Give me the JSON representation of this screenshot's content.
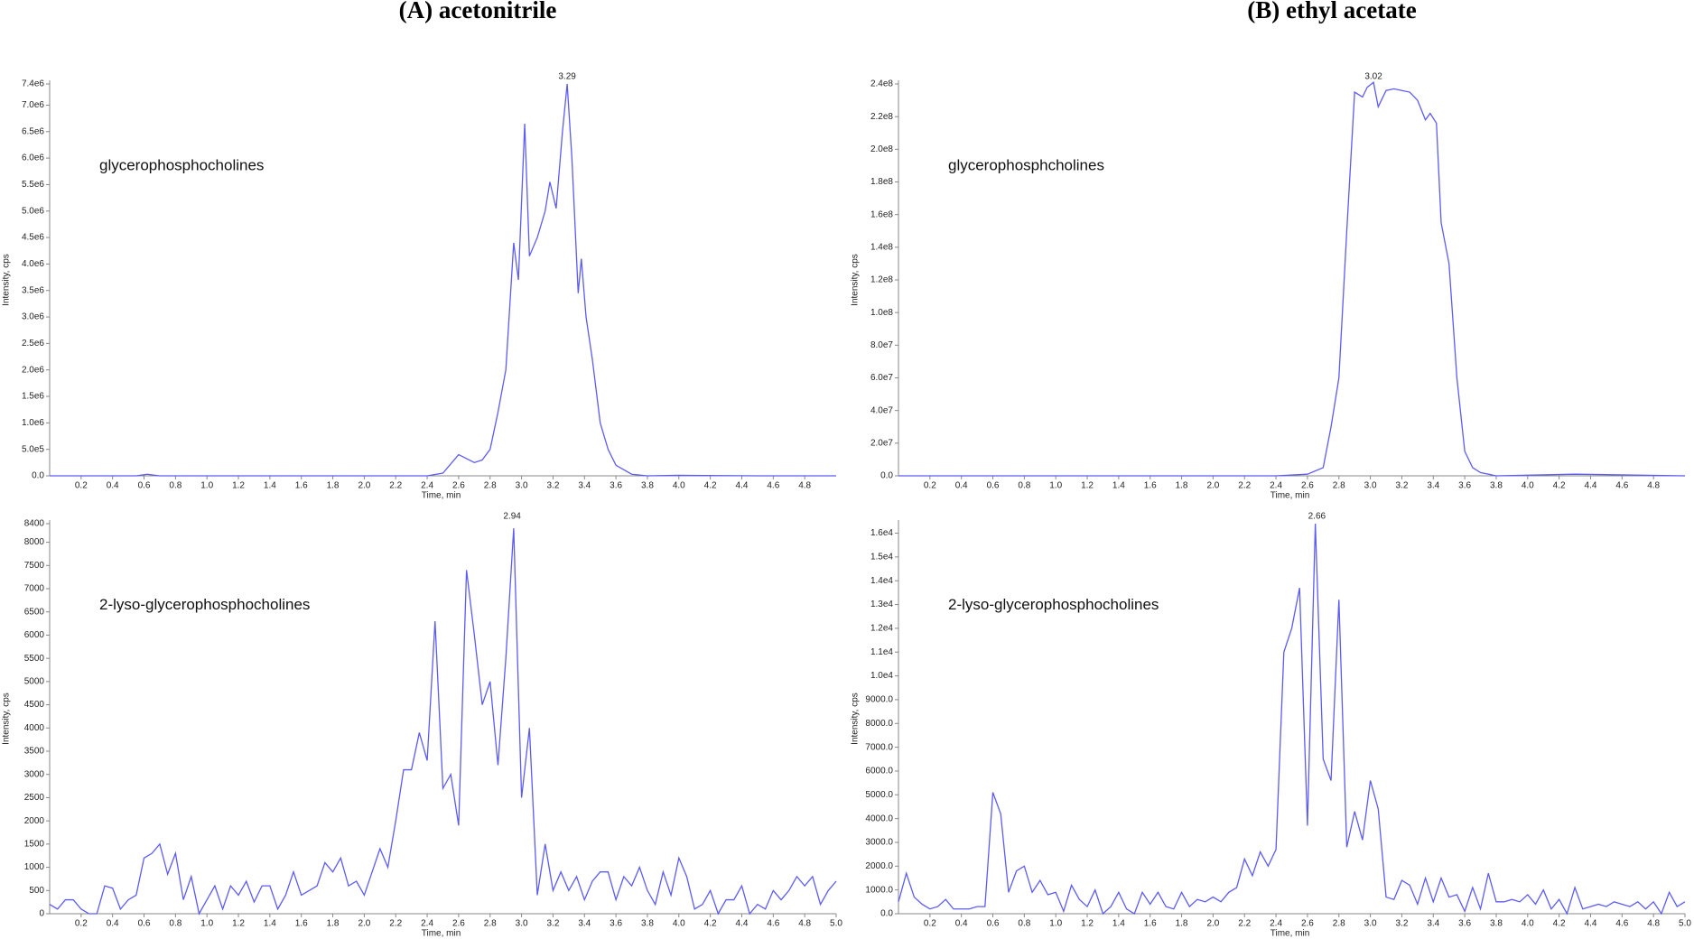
{
  "headings": [
    "(A)  acetonitrile",
    "(B) ethyl acetate"
  ],
  "chart_data": [
    {
      "type": "line",
      "annotation": "glycerophosphocholines",
      "peak_label": 3.29,
      "xlabel": "Time, min",
      "ylabel": "Intensity, cps",
      "xlim": [
        0,
        5
      ],
      "ylim": [
        0,
        7400000
      ],
      "xticks": [
        0.2,
        0.4,
        0.6,
        0.8,
        {
          "value": 1,
          "label": "1.0"
        },
        1.2,
        1.4,
        1.6,
        1.8,
        {
          "value": 2,
          "label": "2.0"
        },
        2.2,
        2.4,
        2.6,
        2.8,
        {
          "value": 3,
          "label": "3.0"
        },
        3.2,
        3.4,
        3.6,
        3.8,
        {
          "value": 4,
          "label": "4.0"
        },
        4.2,
        4.4,
        4.6,
        4.8
      ],
      "yticks": [
        {
          "value": 0,
          "label": "0.0"
        },
        {
          "value": 500000,
          "label": "5.0e5"
        },
        {
          "value": 1000000,
          "label": "1.0e6"
        },
        {
          "value": 1500000,
          "label": "1.5e6"
        },
        {
          "value": 2000000,
          "label": "2.0e6"
        },
        {
          "value": 2500000,
          "label": "2.5e6"
        },
        {
          "value": 3000000,
          "label": "3.0e6"
        },
        {
          "value": 3500000,
          "label": "3.5e6"
        },
        {
          "value": 4000000,
          "label": "4.0e6"
        },
        {
          "value": 4500000,
          "label": "4.5e6"
        },
        {
          "value": 5000000,
          "label": "5.0e6"
        },
        {
          "value": 5500000,
          "label": "5.5e6"
        },
        {
          "value": 6000000,
          "label": "6.0e6"
        },
        {
          "value": 6500000,
          "label": "6.5e6"
        },
        {
          "value": 7000000,
          "label": "7.0e6"
        },
        {
          "value": 7400000,
          "label": "7.4e6"
        }
      ],
      "color": "#5c5cf5",
      "x": [
        0,
        0.55,
        0.62,
        0.7,
        2.0,
        2.4,
        2.5,
        2.6,
        2.7,
        2.75,
        2.8,
        2.85,
        2.9,
        2.95,
        2.98,
        3.02,
        3.05,
        3.1,
        3.15,
        3.18,
        3.22,
        3.26,
        3.29,
        3.32,
        3.36,
        3.38,
        3.41,
        3.45,
        3.5,
        3.55,
        3.6,
        3.7,
        3.8,
        4.0,
        4.5,
        5.0
      ],
      "values": [
        0,
        0,
        30000,
        0,
        0,
        0,
        50000,
        400000,
        250000,
        300000,
        500000,
        1200000,
        2000000,
        4400000,
        3700000,
        6650000,
        4150000,
        4500000,
        5000000,
        5550000,
        5050000,
        6500000,
        7400000,
        6000000,
        3450000,
        4100000,
        3000000,
        2200000,
        1000000,
        500000,
        200000,
        30000,
        0,
        10000,
        0,
        0
      ]
    },
    {
      "type": "line",
      "annotation": "glycerophosphcholines",
      "peak_label": 3.02,
      "xlabel": "Time, min",
      "ylabel": "Intensity, cps",
      "xlim": [
        0,
        5
      ],
      "ylim": [
        0,
        240000000
      ],
      "xticks": [
        0.2,
        0.4,
        0.6,
        0.8,
        {
          "value": 1,
          "label": "1.0"
        },
        1.2,
        1.4,
        1.6,
        1.8,
        {
          "value": 2,
          "label": "2.0"
        },
        2.2,
        2.4,
        2.6,
        2.8,
        {
          "value": 3,
          "label": "3.0"
        },
        3.2,
        3.4,
        3.6,
        3.8,
        {
          "value": 4,
          "label": "4.0"
        },
        4.2,
        4.4,
        4.6,
        4.8
      ],
      "yticks": [
        {
          "value": 0,
          "label": "0.0"
        },
        {
          "value": 20000000,
          "label": "2.0e7"
        },
        {
          "value": 40000000,
          "label": "4.0e7"
        },
        {
          "value": 60000000,
          "label": "6.0e7"
        },
        {
          "value": 80000000,
          "label": "8.0e7"
        },
        {
          "value": 100000000,
          "label": "1.0e8"
        },
        {
          "value": 120000000,
          "label": "1.2e8"
        },
        {
          "value": 140000000,
          "label": "1.4e8"
        },
        {
          "value": 160000000,
          "label": "1.6e8"
        },
        {
          "value": 180000000,
          "label": "1.8e8"
        },
        {
          "value": 200000000,
          "label": "2.0e8"
        },
        {
          "value": 220000000,
          "label": "2.2e8"
        },
        {
          "value": 240000000,
          "label": "2.4e8"
        }
      ],
      "color": "#5c5cf5",
      "x": [
        0,
        2.4,
        2.6,
        2.7,
        2.75,
        2.8,
        2.85,
        2.9,
        2.95,
        2.98,
        3.02,
        3.05,
        3.1,
        3.15,
        3.2,
        3.25,
        3.3,
        3.35,
        3.38,
        3.42,
        3.45,
        3.5,
        3.55,
        3.6,
        3.65,
        3.7,
        3.8,
        4.3,
        5.0
      ],
      "values": [
        0,
        0,
        1000000,
        5000000,
        30000000,
        60000000,
        150000000,
        235000000,
        232000000,
        238000000,
        241000000,
        226000000,
        236000000,
        237000000,
        236000000,
        235000000,
        230000000,
        218000000,
        222000000,
        216000000,
        155000000,
        130000000,
        60000000,
        15000000,
        5000000,
        2000000,
        0,
        1000000,
        0
      ]
    },
    {
      "type": "line",
      "annotation": "2-lyso-glycerophosphocholines",
      "peak_label": 2.94,
      "xlabel": "Time, min",
      "ylabel": "Intensity, cps",
      "xlim": [
        0,
        5
      ],
      "ylim": [
        0,
        8400
      ],
      "xticks": [
        0.2,
        0.4,
        0.6,
        0.8,
        {
          "value": 1,
          "label": "1.0"
        },
        1.2,
        1.4,
        1.6,
        1.8,
        {
          "value": 2,
          "label": "2.0"
        },
        2.2,
        2.4,
        2.6,
        2.8,
        {
          "value": 3,
          "label": "3.0"
        },
        3.2,
        3.4,
        3.6,
        3.8,
        {
          "value": 4,
          "label": "4.0"
        },
        4.2,
        4.4,
        4.6,
        4.8,
        {
          "value": 5,
          "label": "5.0"
        }
      ],
      "yticks": [
        0,
        500,
        1000,
        1500,
        2000,
        2500,
        3000,
        3500,
        4000,
        4500,
        5000,
        5500,
        6000,
        6500,
        7000,
        7500,
        8000,
        8400
      ],
      "color": "#5c5cf5",
      "x": [
        0,
        0.05,
        0.1,
        0.15,
        0.2,
        0.25,
        0.3,
        0.35,
        0.4,
        0.45,
        0.5,
        0.55,
        0.6,
        0.65,
        0.7,
        0.75,
        0.8,
        0.85,
        0.9,
        0.95,
        1.0,
        1.05,
        1.1,
        1.15,
        1.2,
        1.25,
        1.3,
        1.35,
        1.4,
        1.45,
        1.5,
        1.55,
        1.6,
        1.65,
        1.7,
        1.75,
        1.8,
        1.85,
        1.9,
        1.95,
        2.0,
        2.05,
        2.1,
        2.15,
        2.2,
        2.25,
        2.3,
        2.35,
        2.4,
        2.45,
        2.5,
        2.55,
        2.6,
        2.65,
        2.7,
        2.75,
        2.8,
        2.85,
        2.9,
        2.95,
        3.0,
        3.05,
        3.1,
        3.15,
        3.2,
        3.25,
        3.3,
        3.35,
        3.4,
        3.45,
        3.5,
        3.55,
        3.6,
        3.65,
        3.7,
        3.75,
        3.8,
        3.85,
        3.9,
        3.95,
        4.0,
        4.05,
        4.1,
        4.15,
        4.2,
        4.25,
        4.3,
        4.35,
        4.4,
        4.45,
        4.5,
        4.55,
        4.6,
        4.65,
        4.7,
        4.75,
        4.8,
        4.85,
        4.9,
        4.95,
        5.0
      ],
      "values": [
        200,
        100,
        300,
        300,
        100,
        0,
        0,
        600,
        550,
        100,
        300,
        400,
        1200,
        1300,
        1500,
        850,
        1300,
        300,
        800,
        0,
        300,
        600,
        100,
        600,
        400,
        700,
        250,
        600,
        600,
        100,
        400,
        900,
        400,
        500,
        600,
        1100,
        900,
        1200,
        600,
        700,
        400,
        900,
        1400,
        1000,
        2000,
        3100,
        3100,
        3900,
        3300,
        6300,
        2700,
        3000,
        1900,
        7400,
        6000,
        4500,
        5000,
        3200,
        5500,
        8300,
        2500,
        4000,
        400,
        1500,
        500,
        900,
        500,
        800,
        300,
        700,
        900,
        900,
        300,
        800,
        600,
        1000,
        500,
        200,
        900,
        400,
        1200,
        800,
        100,
        200,
        500,
        0,
        300,
        300,
        600,
        0,
        200,
        100,
        500,
        300,
        500,
        800,
        600,
        800,
        200,
        500,
        700
      ]
    },
    {
      "type": "line",
      "annotation": "2-lyso-glycerophosphocholines",
      "peak_label": 2.66,
      "xlabel": "Time, min",
      "ylabel": "Intensity, cps",
      "xlim": [
        0,
        5
      ],
      "ylim": [
        0,
        16400
      ],
      "xticks": [
        0.2,
        0.4,
        0.6,
        0.8,
        {
          "value": 1,
          "label": "1.0"
        },
        1.2,
        1.4,
        1.6,
        1.8,
        {
          "value": 2,
          "label": "2.0"
        },
        2.2,
        2.4,
        2.6,
        2.8,
        {
          "value": 3,
          "label": "3.0"
        },
        3.2,
        3.4,
        3.6,
        3.8,
        {
          "value": 4,
          "label": "4.0"
        },
        4.2,
        4.4,
        4.6,
        4.8,
        {
          "value": 5,
          "label": "5.0"
        }
      ],
      "yticks": [
        {
          "value": 0,
          "label": "0.0"
        },
        {
          "value": 1000,
          "label": "1000.0"
        },
        {
          "value": 2000,
          "label": "2000.0"
        },
        {
          "value": 3000,
          "label": "3000.0"
        },
        {
          "value": 4000,
          "label": "4000.0"
        },
        {
          "value": 5000,
          "label": "5000.0"
        },
        {
          "value": 6000,
          "label": "6000.0"
        },
        {
          "value": 7000,
          "label": "7000.0"
        },
        {
          "value": 8000,
          "label": "8000.0"
        },
        {
          "value": 9000,
          "label": "9000.0"
        },
        {
          "value": 10000,
          "label": "1.0e4"
        },
        {
          "value": 11000,
          "label": "1.1e4"
        },
        {
          "value": 12000,
          "label": "1.2e4"
        },
        {
          "value": 13000,
          "label": "1.3e4"
        },
        {
          "value": 14000,
          "label": "1.4e4"
        },
        {
          "value": 15000,
          "label": "1.5e4"
        },
        {
          "value": 16000,
          "label": "1.6e4"
        }
      ],
      "color": "#5c5cf5",
      "x": [
        0,
        0.05,
        0.1,
        0.15,
        0.2,
        0.25,
        0.3,
        0.35,
        0.4,
        0.45,
        0.5,
        0.55,
        0.6,
        0.65,
        0.7,
        0.75,
        0.8,
        0.85,
        0.9,
        0.95,
        1.0,
        1.05,
        1.1,
        1.15,
        1.2,
        1.25,
        1.3,
        1.35,
        1.4,
        1.45,
        1.5,
        1.55,
        1.6,
        1.65,
        1.7,
        1.75,
        1.8,
        1.85,
        1.9,
        1.95,
        2.0,
        2.05,
        2.1,
        2.15,
        2.2,
        2.25,
        2.3,
        2.35,
        2.4,
        2.45,
        2.5,
        2.55,
        2.6,
        2.65,
        2.7,
        2.75,
        2.8,
        2.85,
        2.9,
        2.95,
        3.0,
        3.05,
        3.1,
        3.15,
        3.2,
        3.25,
        3.3,
        3.35,
        3.4,
        3.45,
        3.5,
        3.55,
        3.6,
        3.65,
        3.7,
        3.75,
        3.8,
        3.85,
        3.9,
        3.95,
        4.0,
        4.05,
        4.1,
        4.15,
        4.2,
        4.25,
        4.3,
        4.35,
        4.4,
        4.45,
        4.5,
        4.55,
        4.6,
        4.65,
        4.7,
        4.75,
        4.8,
        4.85,
        4.9,
        4.95,
        5.0
      ],
      "values": [
        500,
        1700,
        700,
        400,
        200,
        300,
        600,
        200,
        200,
        200,
        300,
        300,
        5100,
        4200,
        900,
        1800,
        2000,
        900,
        1400,
        800,
        900,
        100,
        1200,
        600,
        300,
        1000,
        0,
        300,
        900,
        200,
        0,
        900,
        400,
        900,
        300,
        200,
        900,
        300,
        600,
        500,
        700,
        500,
        900,
        1100,
        2300,
        1600,
        2600,
        2000,
        2700,
        11000,
        12000,
        13700,
        3700,
        16400,
        6500,
        5600,
        13200,
        2800,
        4300,
        3100,
        5600,
        4400,
        700,
        600,
        1400,
        1200,
        400,
        1500,
        500,
        1500,
        700,
        800,
        100,
        1100,
        200,
        1700,
        500,
        500,
        600,
        500,
        800,
        400,
        1000,
        200,
        600,
        0,
        1100,
        200,
        300,
        400,
        300,
        500,
        400,
        300,
        500,
        200,
        500,
        0,
        900,
        300,
        500
      ]
    }
  ]
}
